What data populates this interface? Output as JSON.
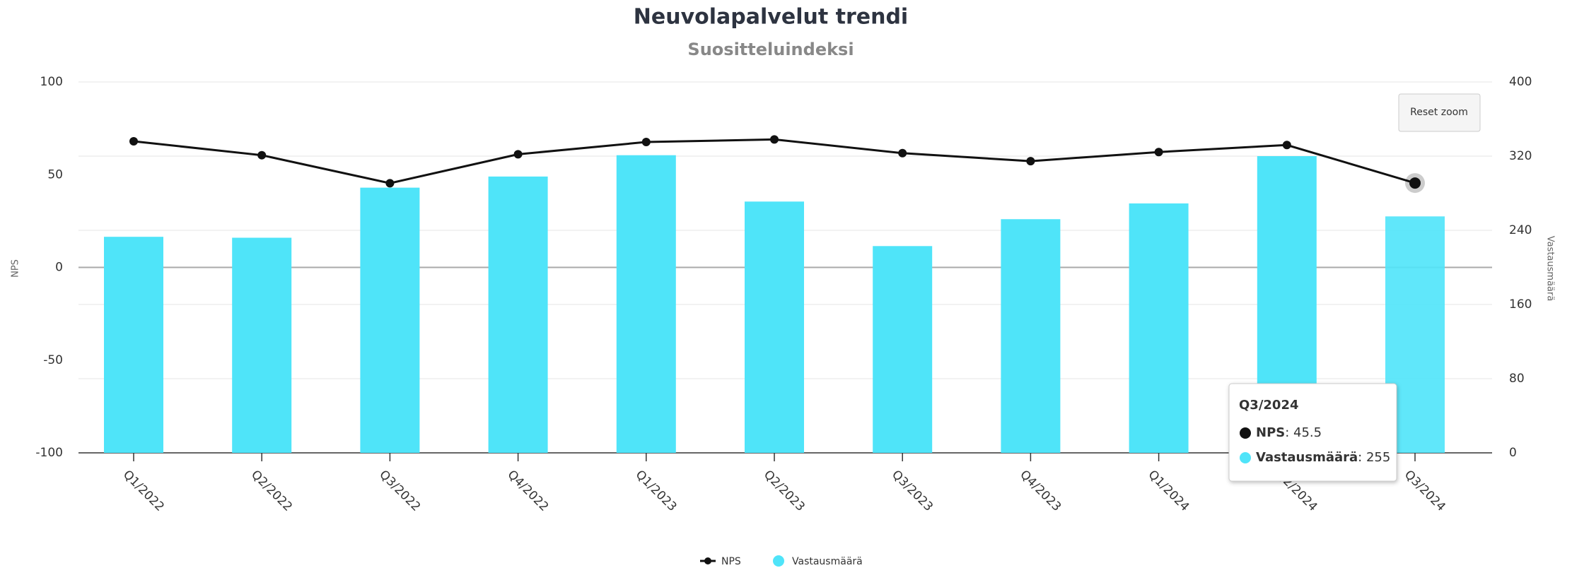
{
  "chart_data": {
    "type": "bar-line",
    "title": "Neuvolapalvelut trendi",
    "subtitle": "Suositteluindeksi",
    "y_label": "NPS",
    "y2_label": "Vastausmäärä",
    "categories": [
      "Q1/2022",
      "Q2/2022",
      "Q3/2022",
      "Q4/2022",
      "Q1/2023",
      "Q2/2023",
      "Q3/2023",
      "Q4/2023",
      "Q1/2024",
      "Q2/2024",
      "Q3/2024"
    ],
    "series": [
      {
        "name": "NPS",
        "type": "line",
        "color": "#111111",
        "values": [
          68,
          60.5,
          45.4,
          61,
          67.6,
          69,
          61.6,
          57.3,
          62.2,
          66,
          45.5
        ]
      },
      {
        "name": "Vastausmäärä",
        "type": "bar",
        "axis": "y2",
        "color": "#4fe4f9",
        "values": [
          233,
          232,
          286,
          298,
          321,
          271,
          223,
          252,
          269,
          320,
          255
        ]
      }
    ],
    "ylim": [
      -100,
      100
    ],
    "yticks": [
      -100,
      -50,
      0,
      50,
      100
    ],
    "y2lim": [
      0,
      400
    ],
    "y2ticks": [
      0,
      80,
      160,
      240,
      320,
      400
    ],
    "grid": true,
    "legend": "bottom",
    "tooltip": {
      "title": "Q3/2024"
    },
    "reset_button": "Reset zoom"
  }
}
